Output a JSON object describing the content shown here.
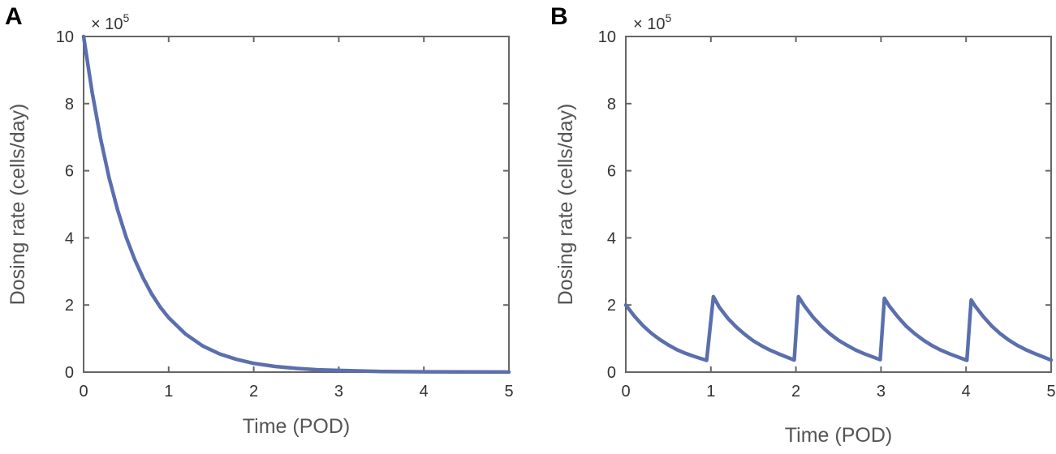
{
  "colors": {
    "series": "#5b6fad",
    "axis": "#666666"
  },
  "chart_data": [
    {
      "type": "line",
      "panel_label": "A",
      "title": "",
      "xlabel": "Time (POD)",
      "ylabel": "Dosing rate (cells/day)",
      "y_multiplier": {
        "prefix": "× 10",
        "exponent": "5"
      },
      "xlim": [
        0,
        5
      ],
      "ylim": [
        0,
        10
      ],
      "xticks": [
        0,
        1,
        2,
        3,
        4,
        5
      ],
      "yticks": [
        0,
        2,
        4,
        6,
        8,
        10
      ],
      "xtick_labels": [
        "0",
        "1",
        "2",
        "3",
        "4",
        "5"
      ],
      "ytick_labels": [
        "0",
        "2",
        "4",
        "6",
        "8",
        "10"
      ],
      "grid": false,
      "series": [
        {
          "x": [
            0,
            0.1,
            0.2,
            0.3,
            0.4,
            0.5,
            0.6,
            0.7,
            0.8,
            0.9,
            1.0,
            1.2,
            1.4,
            1.6,
            1.8,
            2.0,
            2.25,
            2.5,
            2.75,
            3.0,
            3.5,
            4.0,
            4.5,
            5.0
          ],
          "values": [
            10,
            8.34,
            6.95,
            5.79,
            4.83,
            4.02,
            3.36,
            2.8,
            2.33,
            1.94,
            1.62,
            1.13,
            0.78,
            0.54,
            0.38,
            0.26,
            0.17,
            0.11,
            0.07,
            0.05,
            0.02,
            0.01,
            0.005,
            0.002
          ]
        }
      ]
    },
    {
      "type": "line",
      "panel_label": "B",
      "title": "",
      "xlabel": "Time (POD)",
      "ylabel": "Dosing rate (cells/day)",
      "y_multiplier": {
        "prefix": "× 10",
        "exponent": "5"
      },
      "xlim": [
        0,
        5
      ],
      "ylim": [
        0,
        10
      ],
      "xticks": [
        0,
        1,
        2,
        3,
        4,
        5
      ],
      "yticks": [
        0,
        2,
        4,
        6,
        8,
        10
      ],
      "xtick_labels": [
        "0",
        "1",
        "2",
        "3",
        "4",
        "5"
      ],
      "ytick_labels": [
        "0",
        "2",
        "4",
        "6",
        "8",
        "10"
      ],
      "grid": false,
      "series": [
        {
          "x": [
            0,
            0.1,
            0.2,
            0.3,
            0.4,
            0.5,
            0.6,
            0.7,
            0.8,
            0.95,
            1.03,
            1.1,
            1.2,
            1.3,
            1.4,
            1.5,
            1.6,
            1.7,
            1.8,
            1.98,
            2.03,
            2.1,
            2.2,
            2.3,
            2.4,
            2.5,
            2.6,
            2.7,
            2.8,
            2.99,
            3.04,
            3.1,
            3.2,
            3.3,
            3.4,
            3.5,
            3.6,
            3.7,
            3.8,
            4.01,
            4.06,
            4.1,
            4.2,
            4.3,
            4.4,
            4.5,
            4.6,
            4.7,
            4.8,
            5.0
          ],
          "values": [
            2.0,
            1.67,
            1.39,
            1.16,
            0.97,
            0.81,
            0.67,
            0.56,
            0.47,
            0.35,
            2.25,
            1.93,
            1.6,
            1.34,
            1.12,
            0.93,
            0.78,
            0.65,
            0.54,
            0.36,
            2.25,
            1.97,
            1.64,
            1.37,
            1.14,
            0.95,
            0.8,
            0.66,
            0.55,
            0.37,
            2.2,
            1.96,
            1.64,
            1.36,
            1.14,
            0.95,
            0.79,
            0.66,
            0.55,
            0.35,
            2.15,
            1.99,
            1.66,
            1.38,
            1.15,
            0.96,
            0.8,
            0.67,
            0.56,
            0.36
          ]
        }
      ]
    }
  ]
}
